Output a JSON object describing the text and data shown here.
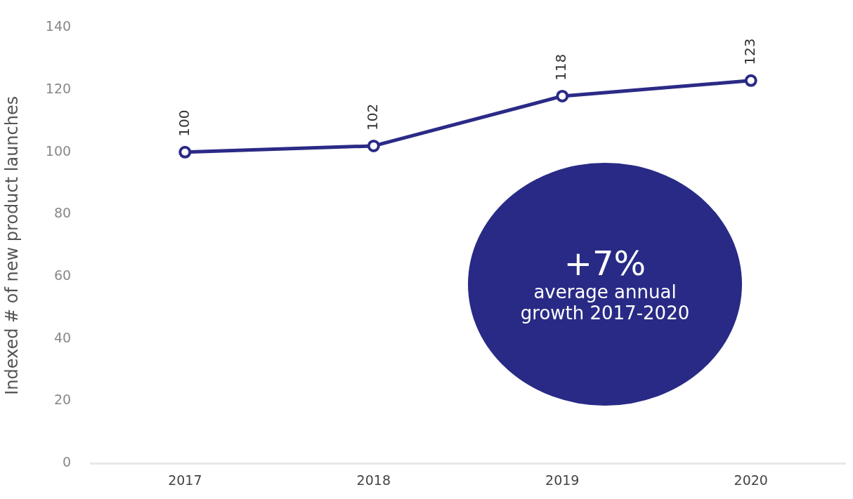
{
  "chart_data": {
    "type": "line",
    "ylabel": "Indexed # of new product launches",
    "categories": [
      "2017",
      "2018",
      "2019",
      "2020"
    ],
    "series": [
      {
        "color": "#2b2a86",
        "values": [
          100,
          102,
          118,
          123
        ]
      }
    ],
    "ylim": [
      0,
      140
    ],
    "yticks": [
      0,
      20,
      40,
      60,
      80,
      100,
      120,
      140
    ],
    "data_labels": true,
    "marker": "circle",
    "grid": false,
    "legend": false,
    "annotations": [
      "+7%",
      "average annual growth 2017-2020"
    ]
  }
}
